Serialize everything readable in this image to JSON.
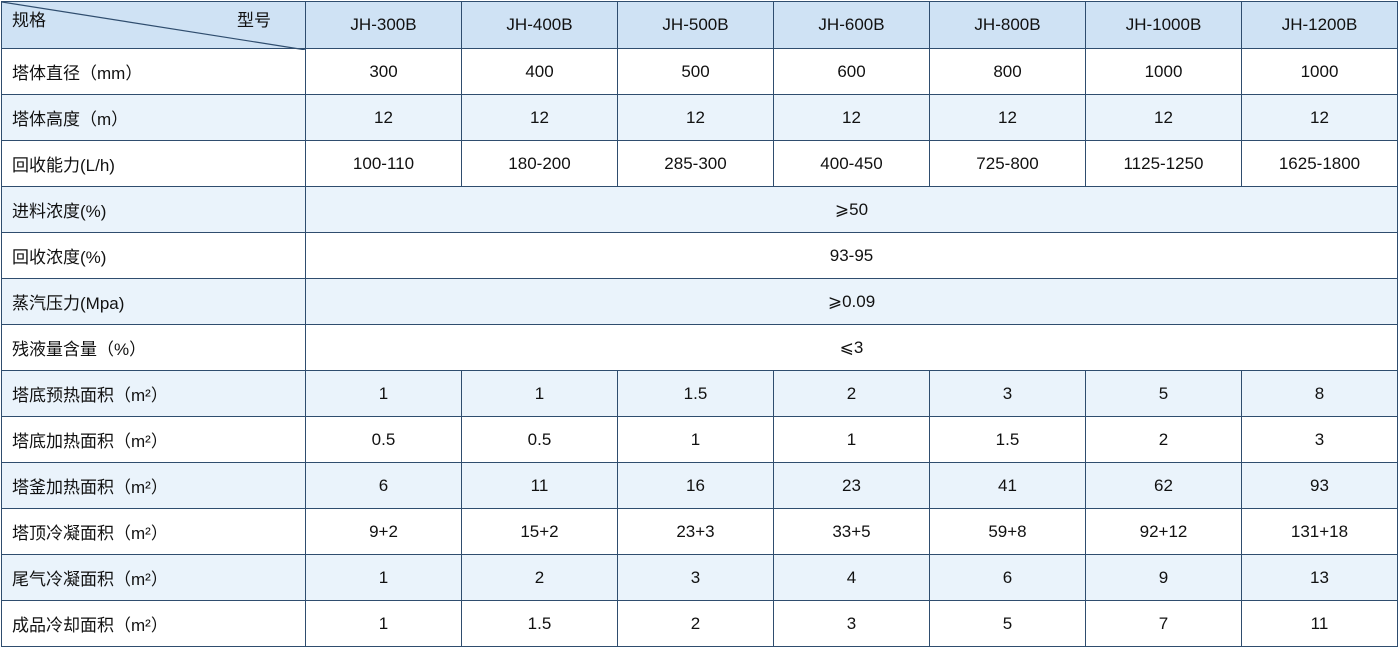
{
  "table": {
    "corner": {
      "row_header": "规格",
      "col_header": "型号"
    },
    "columns": [
      "JH-300B",
      "JH-400B",
      "JH-500B",
      "JH-600B",
      "JH-800B",
      "JH-1000B",
      "JH-1200B"
    ],
    "rows": [
      [
        "塔体直径（mm）",
        "300",
        "400",
        "500",
        "600",
        "800",
        "1000",
        "1000"
      ],
      [
        "塔体高度（m）",
        "12",
        "12",
        "12",
        "12",
        "12",
        "12",
        "12"
      ],
      [
        "回收能力(L/h)",
        "100-110",
        "180-200",
        "285-300",
        "400-450",
        "725-800",
        "1125-1250",
        "1625-1800"
      ],
      [
        "进料浓度(%)",
        "⩾50"
      ],
      [
        "回收浓度(%)",
        "93-95"
      ],
      [
        "蒸汽压力(Mpa)",
        "⩾0.09"
      ],
      [
        "残液量含量（%）",
        "⩽3"
      ],
      [
        "塔底预热面积（m²）",
        "1",
        "1",
        "1.5",
        "2",
        "3",
        "5",
        "8"
      ],
      [
        "塔底加热面积（m²）",
        "0.5",
        "0.5",
        "1",
        "1",
        "1.5",
        "2",
        "3"
      ],
      [
        "塔釜加热面积（m²）",
        "6",
        "11",
        "16",
        "23",
        "41",
        "62",
        "93"
      ],
      [
        "塔顶冷凝面积（m²）",
        "9+2",
        "15+2",
        "23+3",
        "33+5",
        "59+8",
        "92+12",
        "131+18"
      ],
      [
        "尾气冷凝面积（m²）",
        "1",
        "2",
        "3",
        "4",
        "6",
        "9",
        "13"
      ],
      [
        "成品冷却面积（m²）",
        "1",
        "1.5",
        "2",
        "3",
        "5",
        "7",
        "11"
      ]
    ]
  }
}
